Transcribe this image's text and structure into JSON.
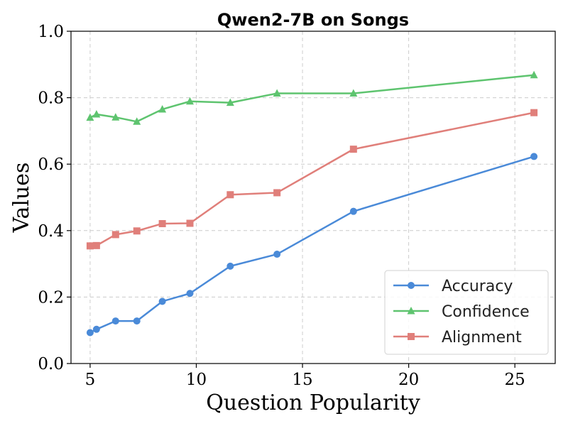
{
  "chart_data": {
    "type": "line",
    "title": "Qwen2-7B on Songs",
    "xlabel": "Question Popularity",
    "ylabel": "Values",
    "xlim": [
      4.1,
      26.9
    ],
    "ylim": [
      0.0,
      1.0
    ],
    "xticks": [
      5,
      10,
      15,
      20,
      25
    ],
    "yticks": [
      0.0,
      0.2,
      0.4,
      0.6,
      0.8,
      1.0
    ],
    "xtick_labels": [
      "5",
      "10",
      "15",
      "20",
      "25"
    ],
    "ytick_labels": [
      "0.0",
      "0.2",
      "0.4",
      "0.6",
      "0.8",
      "1.0"
    ],
    "grid": true,
    "legend_position": "lower-right",
    "series": [
      {
        "name": "Accuracy",
        "color": "#4a8ad8",
        "marker": "circle",
        "x": [
          5.0,
          5.3,
          6.2,
          7.2,
          8.4,
          9.7,
          11.6,
          13.8,
          17.4,
          25.9
        ],
        "y": [
          0.093,
          0.103,
          0.128,
          0.128,
          0.187,
          0.211,
          0.293,
          0.329,
          0.458,
          0.623
        ]
      },
      {
        "name": "Confidence",
        "color": "#5ec46f",
        "marker": "triangle",
        "x": [
          5.0,
          5.3,
          6.2,
          7.2,
          8.4,
          9.7,
          11.6,
          13.8,
          17.4,
          25.9
        ],
        "y": [
          0.74,
          0.75,
          0.741,
          0.728,
          0.765,
          0.789,
          0.785,
          0.813,
          0.813,
          0.868
        ]
      },
      {
        "name": "Alignment",
        "color": "#e07f7a",
        "marker": "square",
        "x": [
          5.0,
          5.3,
          6.2,
          7.2,
          8.4,
          9.7,
          11.6,
          13.8,
          17.4,
          25.9
        ],
        "y": [
          0.354,
          0.355,
          0.388,
          0.399,
          0.421,
          0.422,
          0.508,
          0.514,
          0.645,
          0.755
        ]
      }
    ]
  }
}
